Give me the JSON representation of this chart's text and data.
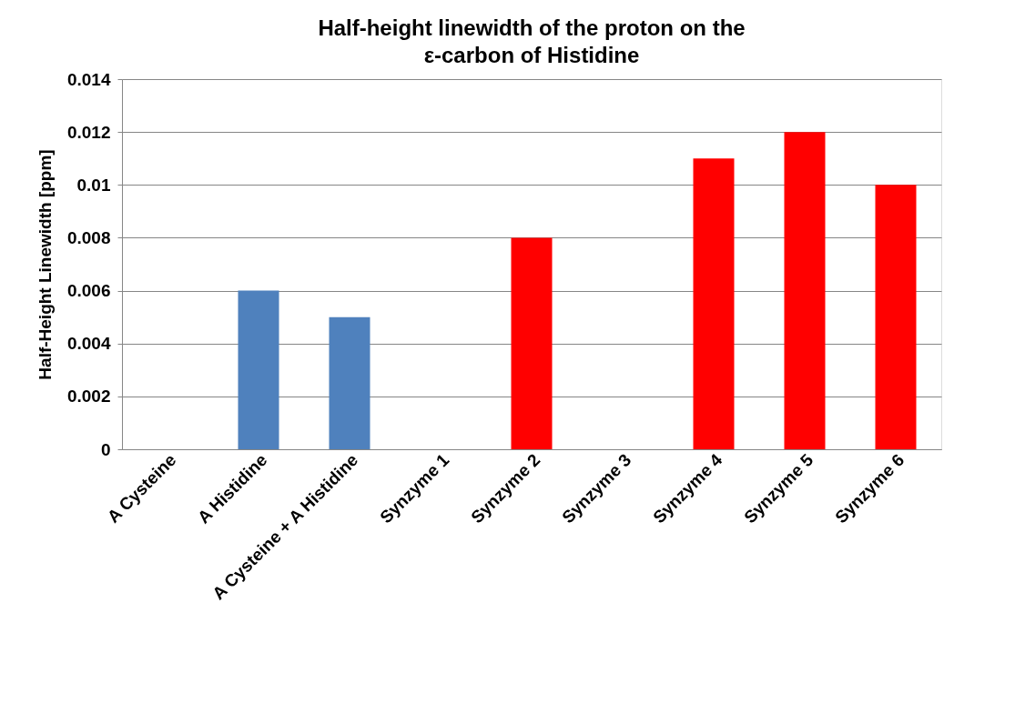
{
  "chart_data": {
    "type": "bar",
    "title": "Half-height linewidth of the proton on the\nε-carbon of Histidine",
    "ylabel": "Half-Height Linewidth [ppm]",
    "categories": [
      "A Cysteine",
      "A Histidine",
      "A Cysteine + A Histidine",
      "Synzyme 1",
      "Synzyme 2",
      "Synzyme 3",
      "Synzyme 4",
      "Synzyme 5",
      "Synzyme 6"
    ],
    "values": [
      null,
      0.006,
      0.005,
      null,
      0.008,
      null,
      0.011,
      0.012,
      0.01
    ],
    "colors": [
      "#4f81bd",
      "#4f81bd",
      "#4f81bd",
      "#ff0000",
      "#ff0000",
      "#ff0000",
      "#ff0000",
      "#ff0000",
      "#ff0000"
    ],
    "ylim": [
      0,
      0.014
    ],
    "yticks": [
      0,
      0.002,
      0.004,
      0.006,
      0.008,
      0.01,
      0.012,
      0.014
    ],
    "grid": "y"
  }
}
